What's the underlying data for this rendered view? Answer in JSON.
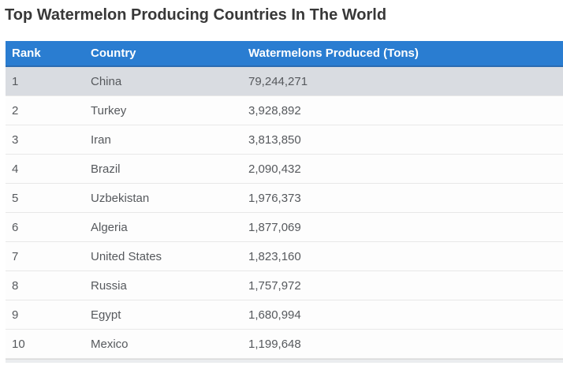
{
  "page": {
    "title": "Top Watermelon Producing Countries In The World"
  },
  "table": {
    "columns": [
      "Rank",
      "Country",
      "Watermelons Produced (Tons)"
    ],
    "rows": [
      {
        "rank": "1",
        "country": "China",
        "produced": "79,244,271"
      },
      {
        "rank": "2",
        "country": "Turkey",
        "produced": "3,928,892"
      },
      {
        "rank": "3",
        "country": "Iran",
        "produced": "3,813,850"
      },
      {
        "rank": "4",
        "country": "Brazil",
        "produced": "2,090,432"
      },
      {
        "rank": "5",
        "country": "Uzbekistan",
        "produced": "1,976,373"
      },
      {
        "rank": "6",
        "country": "Algeria",
        "produced": "1,877,069"
      },
      {
        "rank": "7",
        "country": "United States",
        "produced": "1,823,160"
      },
      {
        "rank": "8",
        "country": "Russia",
        "produced": "1,757,972"
      },
      {
        "rank": "9",
        "country": "Egypt",
        "produced": "1,680,994"
      },
      {
        "rank": "10",
        "country": "Mexico",
        "produced": "1,199,648"
      }
    ],
    "highlighted_row_rank": "1"
  },
  "colors": {
    "title_text": "#383838",
    "header_bg": "#2a7dd1",
    "header_text": "#ffffff",
    "header_border_bottom": "#2b6cb2",
    "highlight_row_bg": "#d9dce1",
    "row_bg": "#fdfdfd",
    "row_border": "#e8e8e8",
    "cell_text": "#56595d",
    "footer_strip_bg": "#ebedef",
    "footer_strip_border": "#d9d9d9"
  },
  "chart_data": {
    "type": "table",
    "title": "Top Watermelon Producing Countries In The World",
    "columns": [
      "Rank",
      "Country",
      "Watermelons Produced (Tons)"
    ],
    "rows": [
      [
        1,
        "China",
        79244271
      ],
      [
        2,
        "Turkey",
        3928892
      ],
      [
        3,
        "Iran",
        3813850
      ],
      [
        4,
        "Brazil",
        2090432
      ],
      [
        5,
        "Uzbekistan",
        1976373
      ],
      [
        6,
        "Algeria",
        1877069
      ],
      [
        7,
        "United States",
        1823160
      ],
      [
        8,
        "Russia",
        1757972
      ],
      [
        9,
        "Egypt",
        1680994
      ],
      [
        10,
        "Mexico",
        1199648
      ]
    ],
    "layout_hints": {
      "sorted_by": "Watermelons Produced (Tons) descending",
      "highlighted_row": 1
    }
  }
}
